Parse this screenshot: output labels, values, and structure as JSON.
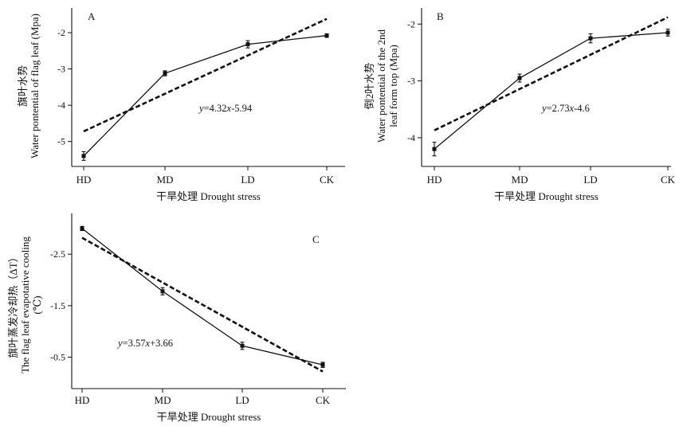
{
  "chart_data": [
    {
      "panel": "A",
      "type": "line",
      "categories": [
        "HD",
        "MD",
        "LD",
        "CK"
      ],
      "series": [
        {
          "values": [
            -5.4,
            -3.12,
            -2.32,
            -2.08
          ],
          "errors": [
            0.12,
            0.07,
            0.1,
            0.05
          ]
        }
      ],
      "fit": {
        "equation": "y=4.32x-5.94",
        "equation_pre": "y",
        "equation_post": "=4.32",
        "equation_var": "x",
        "equation_tail": "-5.94",
        "y_start": -4.72,
        "y_end": -1.62
      },
      "ylabel_cn": "旗叶水势",
      "ylabel_lines": [
        "Water pontential of flag leaf (Mpa)"
      ],
      "xlabel": "干旱处理 Drought stress",
      "yticks": [
        -5,
        -4,
        -3,
        -2
      ],
      "ylim": [
        -5.6,
        -1.45
      ]
    },
    {
      "panel": "B",
      "type": "line",
      "categories": [
        "HD",
        "MD",
        "LD",
        "CK"
      ],
      "series": [
        {
          "values": [
            -4.2,
            -2.95,
            -2.25,
            -2.15
          ],
          "errors": [
            0.12,
            0.07,
            0.08,
            0.06
          ]
        }
      ],
      "fit": {
        "equation": "y=2.73x-4.6",
        "equation_pre": "y",
        "equation_post": "=2.73",
        "equation_var": "x",
        "equation_tail": "-4.6",
        "y_start": -3.87,
        "y_end": -1.88
      },
      "ylabel_cn": "倒2叶水势",
      "ylabel_lines": [
        "Water pontential of the 2nd",
        "leaf form top (Mpa)"
      ],
      "xlabel": "干旱处理 Drought stress",
      "yticks": [
        -4,
        -3,
        -2
      ],
      "ylim": [
        -4.45,
        -1.8
      ]
    },
    {
      "panel": "C",
      "type": "line",
      "categories": [
        "HD",
        "MD",
        "LD",
        "CK"
      ],
      "series": [
        {
          "values": [
            -3.0,
            -1.78,
            -0.72,
            -0.35
          ],
          "errors": [
            0.04,
            0.07,
            0.07,
            0.05
          ]
        }
      ],
      "fit": {
        "equation": "y=3.57x+3.66",
        "equation_pre": "y",
        "equation_post": "=3.57",
        "equation_var": "x",
        "equation_tail": "+3.66",
        "y_start": -2.82,
        "y_end": -0.22
      },
      "ylabel_cn": "旗叶蒸发冷却热（ΔT）",
      "ylabel_lines": [
        "The flag leaf evapotative cooling",
        "(℃)"
      ],
      "xlabel": "干旱处理 Drought stress",
      "yticks": [
        -2.5,
        -1.5,
        -0.5
      ],
      "ytick_labels": [
        "-2.5",
        "-1.5",
        "-0.5"
      ],
      "ylim": [
        -3.2,
        0.05
      ],
      "reversed": true
    }
  ]
}
